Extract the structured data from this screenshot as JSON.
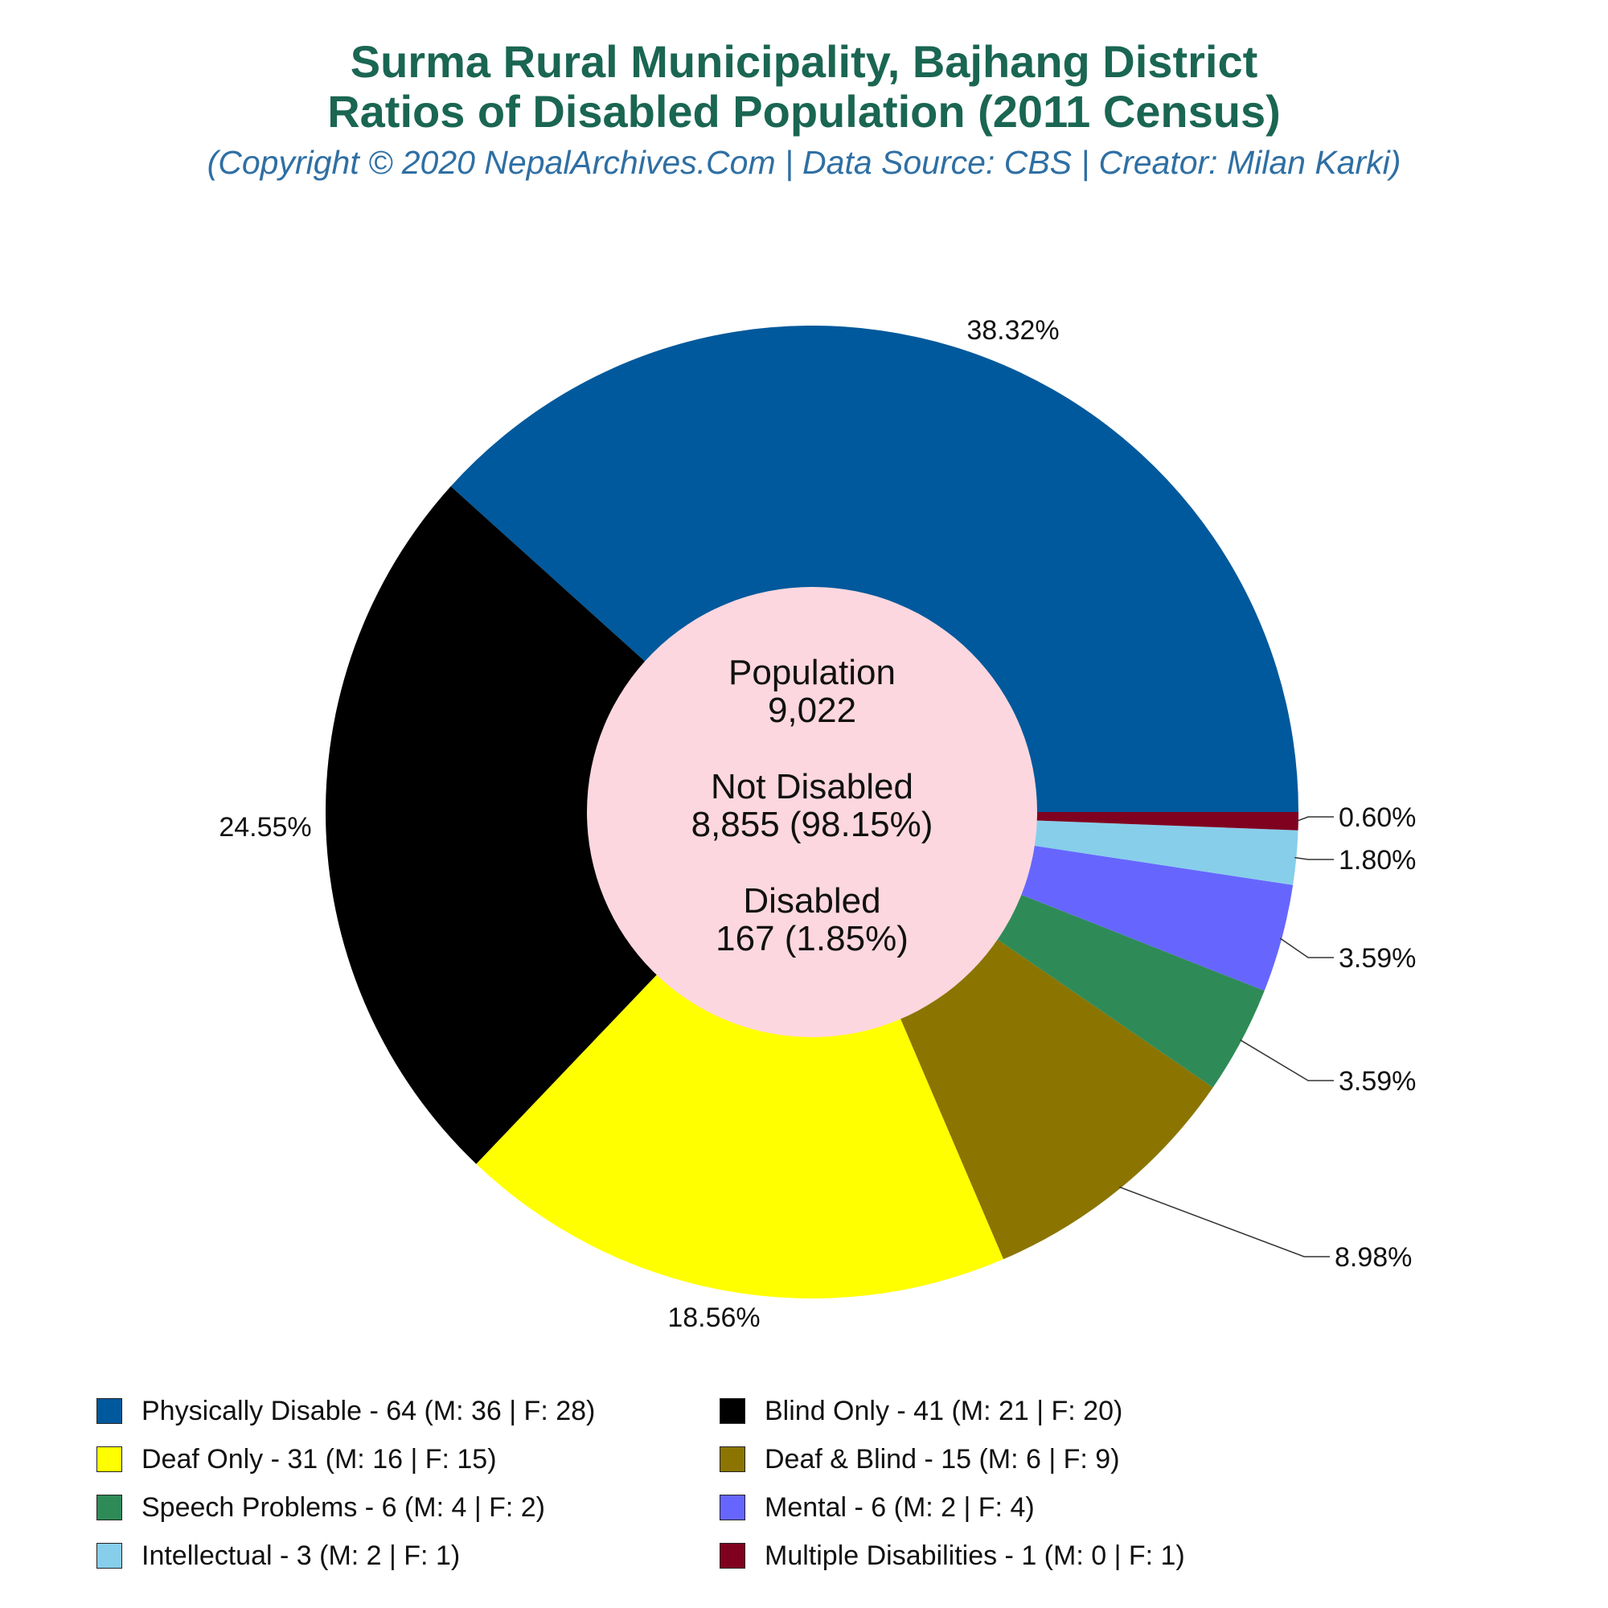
{
  "title_line1": "Surma Rural Municipality, Bajhang District",
  "title_line2": "Ratios of Disabled Population (2011 Census)",
  "subtitle": "(Copyright © 2020 NepalArchives.Com | Data Source: CBS | Creator: Milan Karki)",
  "center": {
    "population_label": "Population",
    "population_value": "9,022",
    "not_disabled_label": "Not Disabled",
    "not_disabled_value": "8,855 (98.15%)",
    "disabled_label": "Disabled",
    "disabled_value": "167 (1.85%)"
  },
  "chart_data": {
    "type": "pie",
    "title": "Surma Rural Municipality, Bajhang District Ratios of Disabled Population (2011 Census)",
    "donut": true,
    "start_angle_deg": 0,
    "direction": "counterclockwise",
    "legend_position": "bottom",
    "slices": [
      {
        "name": "Physically Disable",
        "value": 64,
        "male": 36,
        "female": 28,
        "percent_label": "38.32%",
        "color": "#00599c",
        "legend": "Physically Disable - 64 (M: 36 | F: 28)"
      },
      {
        "name": "Blind Only",
        "value": 41,
        "male": 21,
        "female": 20,
        "percent_label": "24.55%",
        "color": "#000000",
        "legend": "Blind Only - 41 (M: 21 | F: 20)"
      },
      {
        "name": "Deaf Only",
        "value": 31,
        "male": 16,
        "female": 15,
        "percent_label": "18.56%",
        "color": "#ffff00",
        "legend": "Deaf Only - 31 (M: 16 | F: 15)"
      },
      {
        "name": "Deaf & Blind",
        "value": 15,
        "male": 6,
        "female": 9,
        "percent_label": "8.98%",
        "color": "#8b7500",
        "legend": "Deaf & Blind - 15 (M: 6 | F: 9)"
      },
      {
        "name": "Speech Problems",
        "value": 6,
        "male": 4,
        "female": 2,
        "percent_label": "3.59%",
        "color": "#2e8b57",
        "legend": "Speech Problems - 6 (M: 4 | F: 2)"
      },
      {
        "name": "Mental",
        "value": 6,
        "male": 2,
        "female": 4,
        "percent_label": "3.59%",
        "color": "#6666ff",
        "legend": "Mental - 6 (M: 2 | F: 4)"
      },
      {
        "name": "Intellectual",
        "value": 3,
        "male": 2,
        "female": 1,
        "percent_label": "1.80%",
        "color": "#87ceeb",
        "legend": "Intellectual - 3 (M: 2 | F: 1)"
      },
      {
        "name": "Multiple Disabilities",
        "value": 1,
        "male": 0,
        "female": 1,
        "percent_label": "0.60%",
        "color": "#800020",
        "legend": "Multiple Disabilities - 1 (M: 0 | F: 1)"
      }
    ]
  },
  "hole_color": "#fdd7df"
}
